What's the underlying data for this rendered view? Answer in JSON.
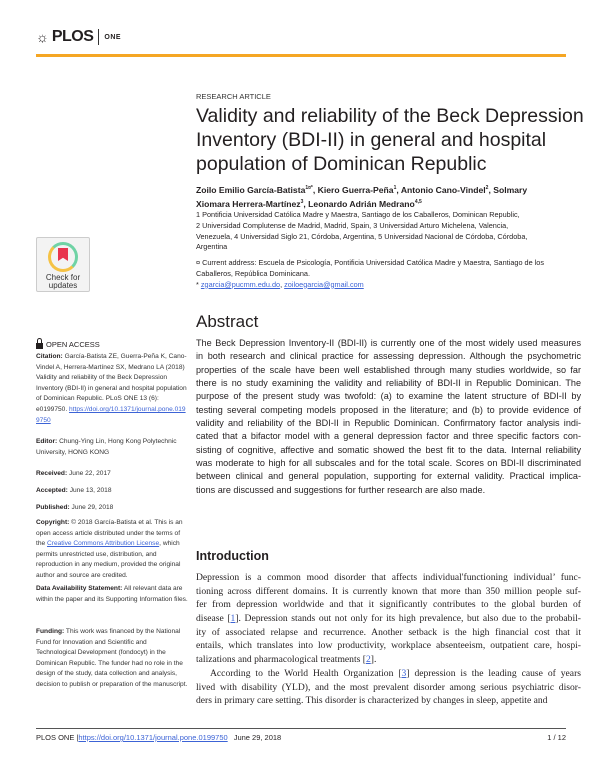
{
  "header": {
    "logo_text": "PLOS",
    "logo_sub": "ONE",
    "accent": "#f5a623"
  },
  "article_type": "RESEARCH ARTICLE",
  "title_lines": [
    "Validity and reliability of the Beck Depression",
    "Inventory (BDI-II) in general and hospital",
    "population of Dominican Republic"
  ],
  "authors": {
    "line1": "Zoilo Emilio García-Batista",
    "sup1": "1¤*",
    "a2": ", Kiero Guerra-Peña",
    "sup2": "1",
    "a3": ", Antonio Cano-Vindel",
    "sup3": "2",
    "a4": ", Solmary",
    "line2": "Xiomara Herrera-Martínez",
    "sup4": "3",
    "a5": ", Leonardo Adrián Medrano",
    "sup5": "4,5"
  },
  "affiliations": [
    "1 Pontificia Universidad Católica Madre y Maestra, Santiago de los Caballeros, Dominican Republic,",
    "2 Universidad Complutense de Madrid, Madrid, Spain, 3 Universidad Arturo Michelena, Valencia,",
    "Venezuela, 4 Universidad Siglo 21, Córdoba, Argentina, 5 Universidad Nacional de Córdoba, Córdoba,",
    "Argentina"
  ],
  "current_address": [
    "¤ Current address: Escuela de Psicología, Pontificia Universidad Católica Madre y Maestra, Santiago de los",
    "Caballeros, República Dominicana."
  ],
  "emails": {
    "prefix": "* ",
    "email1": "zgarcia@pucmm.edu.do",
    "sep": ", ",
    "email2": "zoiloegarcia@gmail.com"
  },
  "abstract": {
    "heading": "Abstract",
    "lines": [
      "The Beck Depression Inventory-II (BDI-II) is currently one of the most widely used measures",
      "in both research and clinical practice for assessing depression. Although the psychometric",
      "properties of the scale have been well established through many studies worldwide, so far",
      "there is no study examining the validity and reliability of BDI-II in Republic Dominican. The",
      "purpose of the present study was twofold: (a) to examine the latent structure of BDI-II by",
      "testing several competing models proposed in the literature; and (b) to provide evidence of",
      "validity and reliability of the BDI-II in Republic Dominican. Confirmatory factor analysis indi-",
      "cated that a bifactor model with a general depression factor and three specific factors con-",
      "sisting of cognitive, affective and somatic showed the best fit to the data. Internal reliability",
      "was moderate to high for all subscales and for the total scale. Scores on BDI-II discriminated",
      "between clinical and general population, supporting for external validity. Practical implica-",
      "tions are discussed and suggestions for further research are also made."
    ]
  },
  "introduction": {
    "heading": "Introduction",
    "lines": [
      "Depression is a common mood disorder that affects individual'functioning individual’ func-",
      "tioning across different domains. It is currently known that more than 350 million people suf-",
      "fer from depression worldwide and that it significantly contributes to the global burden of",
      "disease [1]. Depression stands out not only for its high prevalence, but also due to the probabil-",
      "ity of associated relapse and recurrence. Another setback is the high financial cost that it",
      "entails, which translates into low productivity, workplace absenteeism, outpatient care, hospi-",
      "talizations and pharmacological treatments [2].",
      "According to the World Health Organization [3] depression is the leading cause of years",
      "lived with disability (YLD), and the most prevalent disorder among serious psychiatric disor-",
      "ders in primary care setting. This disorder is characterized by changes in sleep, appetite and"
    ]
  },
  "badge": {
    "line1": "Check for",
    "line2": "updates"
  },
  "sidebar": {
    "open_access": "OPEN ACCESS",
    "citation_label": "Citation:",
    "citation_text": " García-Batista ZE, Guerra-Peña K, Cano-Vindel A, Herrera-Martínez SX, Medrano LA (2018) Validity and reliability of the Beck Depression Inventory (BDI-II) in general and hospital population of Dominican Republic. PLoS ONE 13 (6): e0199750. ",
    "citation_link": "https://doi.org/10.1371/journal.pone.0199750",
    "editor_label": "Editor:",
    "editor_text": " Chung-Ying Lin, Hong Kong Polytechnic University, HONG KONG",
    "received_label": "Received:",
    "received": " June 22, 2017",
    "accepted_label": "Accepted:",
    "accepted": " June 13, 2018",
    "published_label": "Published:",
    "published": " June 29, 2018",
    "copyright_label": "Copyright:",
    "copyright_a": " © 2018 García-Batista et al. This is an open access article distributed under the terms of the ",
    "copyright_link": "Creative Commons Attribution License",
    "copyright_b": ", which permits unrestricted use, distribution, and reproduction in any medium, provided the original author and source are credited.",
    "data_label": "Data Availability Statement:",
    "data_text": " All relevant data are within the paper and its Supporting Information files.",
    "funding_label": "Funding:",
    "funding_text": " This work was financed by the National Fund for Innovation and Scientific and Technological Development (fondocyt) in the Dominican Republic. The funder had no role in the design of the study, data collection and analysis, decision to publish or preparation of the manuscript."
  },
  "footer": {
    "journal": "PLOS ONE | ",
    "doi": "https://doi.org/10.1371/journal.pone.0199750",
    "date": "June 29, 2018",
    "page": "1 / 12"
  }
}
